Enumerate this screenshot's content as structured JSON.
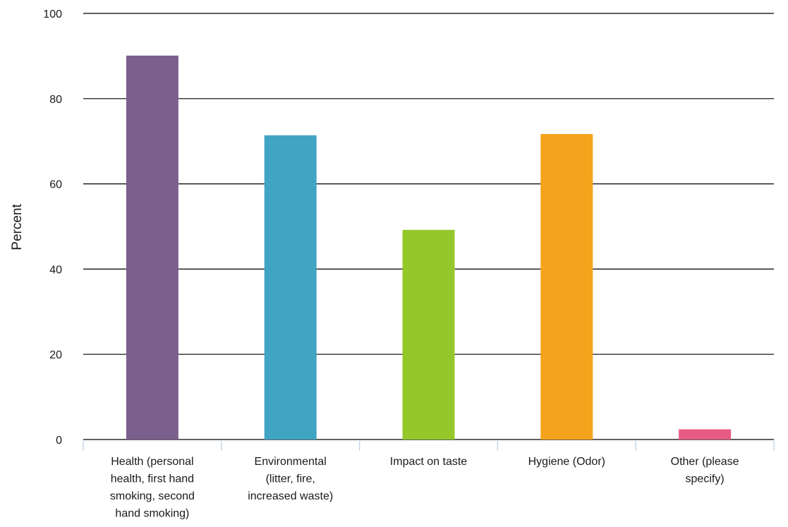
{
  "chart_data": {
    "type": "bar",
    "title": "",
    "xlabel": "",
    "ylabel": "Percent",
    "ylim": [
      0,
      100
    ],
    "yticks": [
      0,
      20,
      40,
      60,
      80,
      100
    ],
    "grid": true,
    "legend": "none",
    "categories": [
      "Health (personal health, first hand smoking, second hand smoking)",
      "Environmental (litter, fire, increased waste)",
      "Impact on taste",
      "Hygiene (Odor)",
      "Other (please specify)"
    ],
    "category_label_lines": [
      [
        "Health (personal",
        "health, first hand",
        "smoking, second",
        "hand smoking)"
      ],
      [
        "Environmental",
        "(litter, fire,",
        "increased waste)"
      ],
      [
        "Impact on taste"
      ],
      [
        "Hygiene (Odor)"
      ],
      [
        "Other (please",
        "specify)"
      ]
    ],
    "values": [
      90.1,
      71.4,
      49.2,
      71.7,
      2.4
    ],
    "colors": [
      "#7b5f8d",
      "#40a4c3",
      "#94c82a",
      "#f4a31c",
      "#e85c84"
    ]
  }
}
